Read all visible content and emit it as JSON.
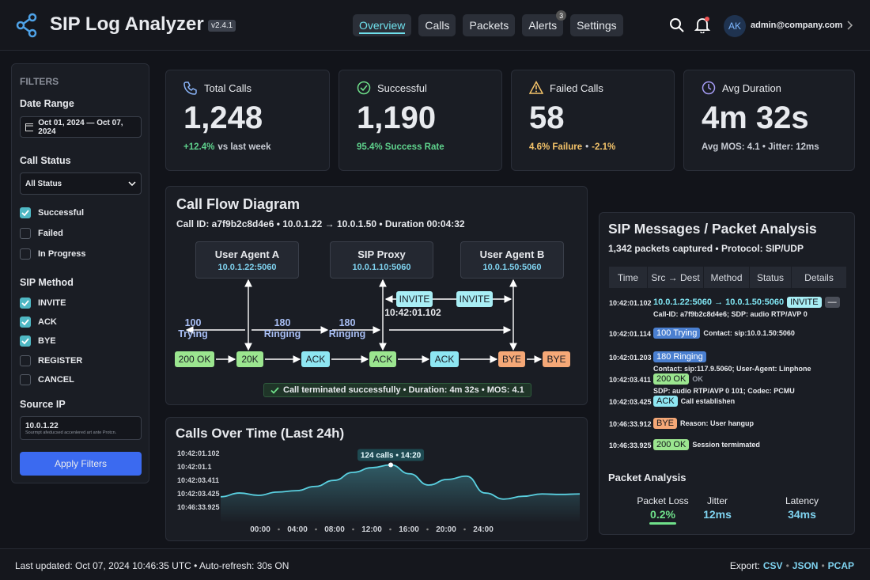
{
  "header": {
    "title": "SIP Log Analyzer",
    "version": "v2.4.1",
    "active": 0,
    "nav": [
      {
        "label": "Overview"
      },
      {
        "label": "Calls"
      },
      {
        "label": "Packets"
      },
      {
        "label": "Alerts",
        "badge": "3"
      },
      {
        "label": "Settings"
      }
    ],
    "avatar": "AK",
    "user": "admin@company.com"
  },
  "sidebar": {
    "title": "FILTERS",
    "date_range_label": "Date Range",
    "date_range": "Oct 01, 2024 — Oct 07, 2024",
    "call_status_label": "Call Status",
    "status_select": "All Status",
    "statuses": [
      {
        "label": "Successful",
        "checked": true
      },
      {
        "label": "Failed",
        "checked": false
      },
      {
        "label": "In Progress",
        "checked": false
      }
    ],
    "sip_method_label": "SIP Method",
    "methods": [
      {
        "label": "INVITE",
        "checked": true
      },
      {
        "label": "ACK",
        "checked": true
      },
      {
        "label": "BYE",
        "checked": true
      },
      {
        "label": "REGISTER",
        "checked": false
      },
      {
        "label": "CANCEL",
        "checked": false
      }
    ],
    "source_ip_label": "Source IP",
    "source_ip": "10.0.1.22",
    "source_ip_hint": "Sourmpt afeducsed accenlered art ante Protcn.",
    "apply": "Apply Filters"
  },
  "kpis": [
    {
      "label": "Total Calls",
      "value": "1,248",
      "note": [
        {
          "text": "+12.4%",
          "color": "#5fd38d"
        },
        {
          "text": "vs last week",
          "color": "#c8ccd4"
        }
      ]
    },
    {
      "label": "Successful",
      "value": "1,190",
      "note": [
        {
          "text": "95.4% Success Rate",
          "color": "#5fd38d"
        }
      ]
    },
    {
      "label": "Failed Calls",
      "value": "58",
      "note": [
        {
          "text": "4.6% Failure",
          "color": "#f5c46a"
        },
        {
          "text": "•",
          "color": "#c8ccd4"
        },
        {
          "text": "-2.1%",
          "color": "#f5c46a"
        }
      ]
    },
    {
      "label": "Avg Duration",
      "value": "4m 32s",
      "note": [
        {
          "text": "Avg MOS: 4.1 • Jitter: 12ms",
          "color": "#c8ccd4"
        }
      ]
    }
  ],
  "call_flow": {
    "title": "Call Flow Diagram",
    "subtitle": "Call ID: a7f9b2c8d4e6 • 10.0.1.22 → 10.0.1.50 • Duration 00:04:32",
    "nodes": [
      {
        "name": "User Agent A",
        "ip": "10.0.1.22:5060"
      },
      {
        "name": "SIP Proxy",
        "ip": "10.0.1.10:5060"
      },
      {
        "name": "User Agent B",
        "ip": "10.0.1.50:5060"
      }
    ],
    "labels": [
      "100 Trying",
      "180 Ringing",
      "180 Ringing"
    ],
    "invites": [
      "INVITE",
      "INVITE"
    ],
    "timestamp": "10:42:01.102",
    "flow": [
      {
        "text": "200 OK",
        "bg": "#9be58f"
      },
      {
        "text": "20K",
        "bg": "#9be58f"
      },
      {
        "text": "ACK",
        "bg": "#8ee6f2"
      },
      {
        "text": "ACK",
        "bg": "#9be58f"
      },
      {
        "text": "ACK",
        "bg": "#8ee6f2"
      },
      {
        "text": "BYE",
        "bg": "#f5a877"
      },
      {
        "text": "BYE",
        "bg": "#f5a877"
      }
    ],
    "status": "Call terminated successfully • Duration: 4m 32s • MOS: 4.1"
  },
  "calls_chart": {
    "title": "Calls Over Time (Last 24h)",
    "color": "#5ad0e0",
    "ylim": [
      0,
      140
    ],
    "values": [
      56,
      64,
      59,
      66,
      69,
      78,
      91,
      108,
      118,
      124,
      105,
      81,
      93,
      100,
      64,
      51,
      57,
      62,
      61,
      62
    ],
    "yticks": [
      "10:42:01.102",
      "10:42:01.1",
      "10:42:03.411",
      "10:42:03.425",
      "10:46:33.925"
    ],
    "xticks": [
      "00:00",
      "04:00",
      "08:00",
      "12:00",
      "16:00",
      "20:00",
      "24:00"
    ],
    "tooltip": "124 calls • 14:20"
  },
  "sip_messages": {
    "title": "SIP Messages / Packet Analysis",
    "subtitle": "1,342 packets captured • Protocol: SIP/UDP",
    "columns": [
      "Time",
      "Src → Dest",
      "Method",
      "Status",
      "Details"
    ],
    "rows": [
      {
        "time": "10:42:01.102",
        "parts": [
          {
            "text": "10.0.1.22:5060 → 10.0.1.50:5060",
            "fg": "#7fe3f0"
          },
          {
            "text": "INVITE",
            "bg": "#a8eef5"
          },
          {
            "text": "—",
            "bg": "#4a4e58"
          }
        ],
        "detail": "Call-ID: a7f9b2c8d4e6; SDP: audio RTP/AVP 0"
      },
      {
        "time": "10:42:01.114",
        "parts": [
          {
            "text": "100 Trying",
            "bg": "#4a7fd0"
          }
        ],
        "detail": "Contact: sip:10.0.1.50:5060"
      },
      {
        "time": "10:42:01.203",
        "parts": [
          {
            "text": "180 Ringing",
            "bg": "#4a7fd0"
          }
        ],
        "detail": "Contact: sip:117.9.5060; User-Agent: Linphone"
      },
      {
        "time": "10:42:03.411",
        "parts": [
          {
            "text": "200 OK",
            "bg": "#9be58f"
          },
          {
            "text": "OK",
            "fg": "#9aa0ab"
          }
        ],
        "detail": "SDP: audio RTP/AVP 0 101; Codec: PCMU"
      },
      {
        "time": "10:42:03.425",
        "parts": [
          {
            "text": "ACK",
            "bg": "#8ee6f2"
          }
        ],
        "detail": "Call establishen"
      },
      {
        "time": "10:46:33.912",
        "parts": [
          {
            "text": "BYE",
            "bg": "#f5a877"
          }
        ],
        "detail": "Reason: User hangup"
      },
      {
        "time": "10:46:33.925",
        "parts": [
          {
            "text": "200 OK",
            "bg": "#9be58f"
          }
        ],
        "detail": "Session termimated"
      }
    ]
  },
  "packet_analysis": {
    "title": "Packet Analysis",
    "metrics": [
      {
        "label": "Packet Loss",
        "value": "0.2%",
        "color": "#6fe08a"
      },
      {
        "label": "Jitter",
        "value": "12ms",
        "color": "#7fd3f0"
      },
      {
        "label": "Latency",
        "value": "34ms",
        "color": "#7fd3f0"
      }
    ]
  },
  "footer": {
    "status": "Last updated: Oct 07, 2024 10:46:35 UTC • Auto-refresh: 30s ON",
    "export_label": "Export:",
    "links": [
      "CSV",
      "JSON",
      "PCAP"
    ]
  }
}
